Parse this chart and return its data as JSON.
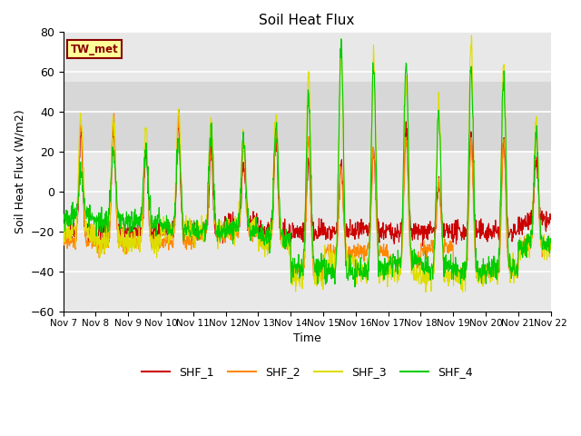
{
  "title": "Soil Heat Flux",
  "ylabel": "Soil Heat Flux (W/m2)",
  "xlabel": "Time",
  "annotation_text": "TW_met",
  "ylim": [
    -60,
    80
  ],
  "yticks": [
    -60,
    -40,
    -20,
    0,
    20,
    40,
    60,
    80
  ],
  "xtick_labels": [
    "Nov 7",
    "Nov 8",
    "Nov 9",
    "Nov 10",
    "Nov 11",
    "Nov 12",
    "Nov 13",
    "Nov 14",
    "Nov 15",
    "Nov 16",
    "Nov 17",
    "Nov 18",
    "Nov 19",
    "Nov 20",
    "Nov 21",
    "Nov 22"
  ],
  "shaded_band": [
    20,
    55
  ],
  "colors": {
    "SHF_1": "#cc0000",
    "SHF_2": "#ff8800",
    "SHF_3": "#dddd00",
    "SHF_4": "#00cc00"
  },
  "annotation_facecolor": "#ffff99",
  "annotation_edgecolor": "#880000",
  "background_color": "#e8e8e8",
  "grid_color": "#ffffff",
  "line_width": 0.8,
  "n_days": 15,
  "pts_per_day": 96
}
